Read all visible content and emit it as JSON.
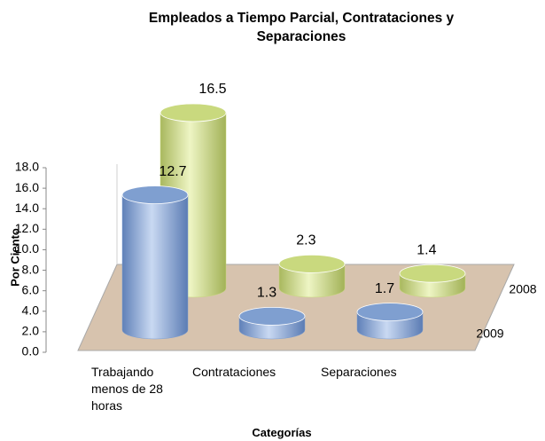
{
  "chart_data": {
    "type": "bar3d",
    "title": "Empleados a Tiempo Parcial, Contrataciones y  Separaciones",
    "y_label": "Por Ciento",
    "x_label": "Categorías",
    "categories": [
      "Trabajando menos de 28 horas",
      "Contrataciones",
      "Separaciones"
    ],
    "series": [
      {
        "name": "2008",
        "color": "#c9d97e",
        "values": [
          16.5,
          2.3,
          1.4
        ]
      },
      {
        "name": "2009",
        "color": "#7f9fd0",
        "values": [
          12.7,
          1.3,
          1.7
        ]
      }
    ],
    "ylim": [
      0,
      18
    ],
    "yticks": [
      {
        "value": 0,
        "label": "0.0"
      },
      {
        "value": 2,
        "label": "2.0"
      },
      {
        "value": 4,
        "label": "4.0"
      },
      {
        "value": 6,
        "label": "6.0"
      },
      {
        "value": 8,
        "label": "8.0"
      },
      {
        "value": 10,
        "label": "10.0"
      },
      {
        "value": 12,
        "label": "12.0"
      },
      {
        "value": 14,
        "label": "14.0"
      },
      {
        "value": 16,
        "label": "16.0"
      },
      {
        "value": 18,
        "label": "18.0"
      }
    ]
  }
}
